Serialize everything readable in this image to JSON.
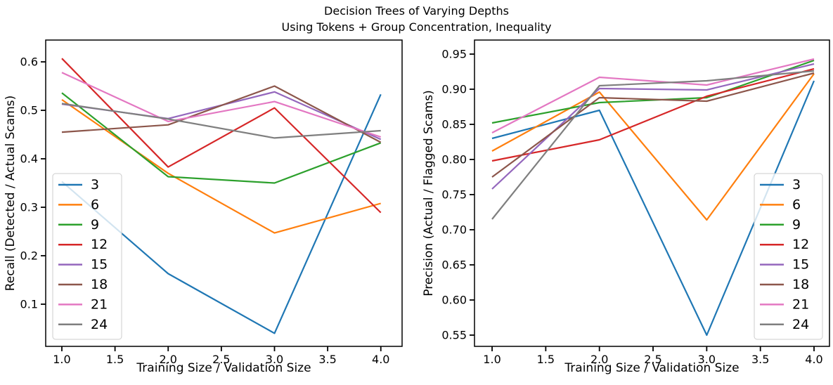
{
  "figure": {
    "title_line1": "Decision Trees of Varying Depths",
    "title_line2": "Using Tokens + Group Concentration, Inequality",
    "background_color": "#ffffff",
    "text_color": "#000000",
    "spine_color": "#000000",
    "legend_border_color": "#cccccc"
  },
  "legend": {
    "labels": [
      "3",
      "6",
      "9",
      "12",
      "15",
      "18",
      "21",
      "24"
    ]
  },
  "chart_data": [
    {
      "type": "line",
      "name": "recall-chart",
      "xlabel": "Training Size / Validation Size",
      "ylabel": "Recall (Detected / Actual Scams)",
      "x": [
        1.0,
        2.0,
        3.0,
        4.0
      ],
      "xlim": [
        0.848,
        4.2
      ],
      "ylim": [
        0.013,
        0.645
      ],
      "xtick_values": [
        1.0,
        1.5,
        2.0,
        2.5,
        3.0,
        3.5,
        4.0
      ],
      "xtick_labels": [
        "1.0",
        "1.5",
        "2.0",
        "2.5",
        "3.0",
        "3.5",
        "4.0"
      ],
      "ytick_values": [
        0.1,
        0.2,
        0.3,
        0.4,
        0.5,
        0.6
      ],
      "ytick_labels": [
        "0.1",
        "0.2",
        "0.3",
        "0.4",
        "0.5",
        "0.6"
      ],
      "grid": false,
      "legend_position": "lower-left",
      "series": [
        {
          "name": "3",
          "color": "#1f77b4",
          "values": [
            0.353,
            0.163,
            0.04,
            0.533
          ]
        },
        {
          "name": "6",
          "color": "#ff7f0e",
          "values": [
            0.522,
            0.37,
            0.247,
            0.308
          ]
        },
        {
          "name": "9",
          "color": "#2ca02c",
          "values": [
            0.536,
            0.363,
            0.35,
            0.433
          ]
        },
        {
          "name": "12",
          "color": "#d62728",
          "values": [
            0.607,
            0.383,
            0.505,
            0.289
          ]
        },
        {
          "name": "15",
          "color": "#9467bd",
          "values": [
            0.513,
            0.483,
            0.538,
            0.44
          ]
        },
        {
          "name": "18",
          "color": "#8c564b",
          "values": [
            0.455,
            0.47,
            0.55,
            0.434
          ]
        },
        {
          "name": "21",
          "color": "#e377c2",
          "values": [
            0.578,
            0.477,
            0.518,
            0.445
          ]
        },
        {
          "name": "24",
          "color": "#7f7f7f",
          "values": [
            0.514,
            0.482,
            0.443,
            0.458
          ]
        }
      ]
    },
    {
      "type": "line",
      "name": "precision-chart",
      "xlabel": "Training Size / Validation Size",
      "ylabel": "Precision (Actual / Flagged Scams)",
      "x": [
        1.0,
        2.0,
        3.0,
        4.0
      ],
      "xlim": [
        0.836,
        4.144
      ],
      "ylim": [
        0.534,
        0.97
      ],
      "xtick_values": [
        1.0,
        1.5,
        2.0,
        2.5,
        3.0,
        3.5,
        4.0
      ],
      "xtick_labels": [
        "1.0",
        "1.5",
        "2.0",
        "2.5",
        "3.0",
        "3.5",
        "4.0"
      ],
      "ytick_values": [
        0.55,
        0.6,
        0.65,
        0.7,
        0.75,
        0.8,
        0.85,
        0.9,
        0.95
      ],
      "ytick_labels": [
        "0.55",
        "0.60",
        "0.65",
        "0.70",
        "0.75",
        "0.80",
        "0.85",
        "0.90",
        "0.95"
      ],
      "grid": false,
      "legend_position": "center-right",
      "series": [
        {
          "name": "3",
          "color": "#1f77b4",
          "values": [
            0.83,
            0.87,
            0.55,
            0.912
          ]
        },
        {
          "name": "6",
          "color": "#ff7f0e",
          "values": [
            0.812,
            0.896,
            0.714,
            0.922
          ]
        },
        {
          "name": "9",
          "color": "#2ca02c",
          "values": [
            0.852,
            0.881,
            0.888,
            0.941
          ]
        },
        {
          "name": "12",
          "color": "#d62728",
          "values": [
            0.798,
            0.828,
            0.89,
            0.929
          ]
        },
        {
          "name": "15",
          "color": "#9467bd",
          "values": [
            0.758,
            0.901,
            0.899,
            0.936
          ]
        },
        {
          "name": "18",
          "color": "#8c564b",
          "values": [
            0.775,
            0.888,
            0.883,
            0.923
          ]
        },
        {
          "name": "21",
          "color": "#e377c2",
          "values": [
            0.838,
            0.917,
            0.906,
            0.943
          ]
        },
        {
          "name": "24",
          "color": "#7f7f7f",
          "values": [
            0.715,
            0.905,
            0.912,
            0.926
          ]
        }
      ]
    }
  ]
}
